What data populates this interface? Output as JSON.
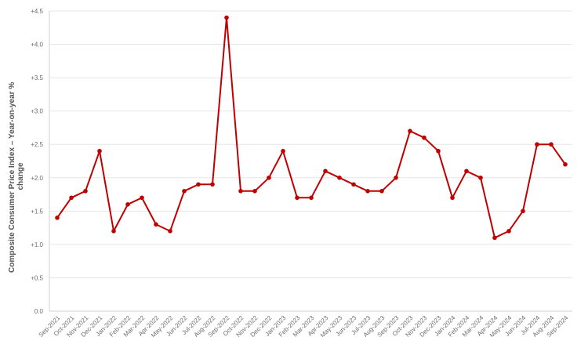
{
  "chart_data": {
    "type": "line",
    "title": "",
    "ylabel_lines": [
      "Composite Consumer Price Index – Year-on-year %",
      "change"
    ],
    "xlabel": "",
    "ylim": [
      0,
      4.5
    ],
    "yticks": [
      "0.0",
      "+0.5",
      "+1.0",
      "+1.5",
      "+2.0",
      "+2.5",
      "+3.0",
      "+3.5",
      "+4.0",
      "+4.5"
    ],
    "grid": true,
    "legend": "none",
    "line_color": "#c00000",
    "categories": [
      "Sep-2021",
      "Oct-2021",
      "Nov-2021",
      "Dec-2021",
      "Jan-2022",
      "Feb-2022",
      "Mar-2022",
      "Apr-2022",
      "May-2022",
      "Jun-2022",
      "Jul-2022",
      "Aug-2022",
      "Sep-2022",
      "Oct-2022",
      "Nov-2022",
      "Dec-2022",
      "Jan-2023",
      "Feb-2023",
      "Mar-2023",
      "Apr-2023",
      "May-2023",
      "Jun-2023",
      "Jul-2023",
      "Aug-2023",
      "Sep-2023",
      "Oct-2023",
      "Nov-2023",
      "Dec-2023",
      "Jan-2024",
      "Feb-2024",
      "Mar-2024",
      "Apr-2024",
      "May-2024",
      "Jun-2024",
      "Jul-2024",
      "Aug-2024",
      "Sep-2024"
    ],
    "values": [
      1.4,
      1.7,
      1.8,
      2.4,
      1.2,
      1.6,
      1.7,
      1.3,
      1.2,
      1.8,
      1.9,
      1.9,
      4.4,
      1.8,
      1.8,
      2.0,
      2.4,
      1.7,
      1.7,
      2.1,
      2.0,
      1.9,
      1.8,
      1.8,
      2.0,
      2.7,
      2.6,
      2.4,
      1.7,
      2.1,
      2.0,
      1.1,
      1.2,
      1.5,
      2.5,
      2.5,
      2.2
    ]
  }
}
